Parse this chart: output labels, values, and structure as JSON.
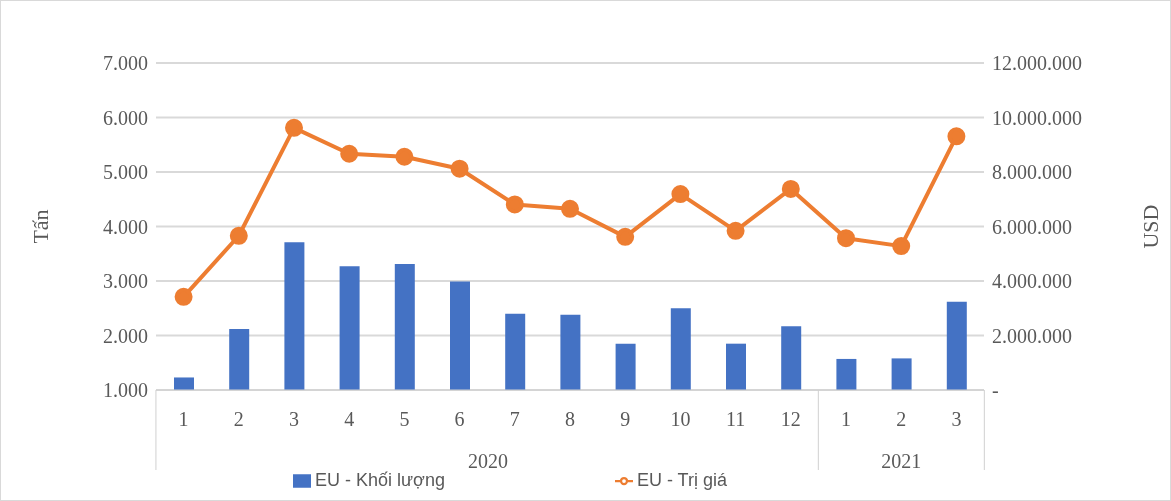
{
  "chart_data": {
    "type": "bar",
    "ylabel": "Tấn",
    "y2label": "USD",
    "categories": [
      "1",
      "2",
      "3",
      "4",
      "5",
      "6",
      "7",
      "8",
      "9",
      "10",
      "11",
      "12",
      "1",
      "2",
      "3"
    ],
    "annotations": [
      "2020",
      "2021"
    ],
    "series": [
      {
        "name": "EU - Khối lượng",
        "color": "#4472c4",
        "values": [
          1230,
          2120,
          3710,
          3270,
          3310,
          2990,
          2400,
          2380,
          1850,
          2500,
          1850,
          2170,
          1570,
          1580,
          2620
        ]
      },
      {
        "name": "EU - Trị giá",
        "type": "line",
        "axis": "y2",
        "color": "#ed7d31",
        "marker": "circle",
        "values": [
          3420000,
          5660000,
          9620000,
          8670000,
          8560000,
          8120000,
          6810000,
          6650000,
          5620000,
          7190000,
          5840000,
          7380000,
          5570000,
          5280000,
          9310000
        ]
      }
    ],
    "ylim": [
      1000,
      7000
    ],
    "yticks": [
      {
        "value": 1000,
        "label": "1.000"
      },
      {
        "value": 2000,
        "label": "2.000"
      },
      {
        "value": 3000,
        "label": "3.000"
      },
      {
        "value": 4000,
        "label": "4.000"
      },
      {
        "value": 5000,
        "label": "5.000"
      },
      {
        "value": 6000,
        "label": "6.000"
      },
      {
        "value": 7000,
        "label": "7.000"
      }
    ],
    "y2lim": [
      0,
      12000000
    ],
    "y2ticks": [
      {
        "value": 0,
        "label": "-"
      },
      {
        "value": 2000000,
        "label": "2.000.000"
      },
      {
        "value": 4000000,
        "label": "4.000.000"
      },
      {
        "value": 6000000,
        "label": "6.000.000"
      },
      {
        "value": 8000000,
        "label": "8.000.000"
      },
      {
        "value": 10000000,
        "label": "10.000.000"
      },
      {
        "value": 12000000,
        "label": "12.000.000"
      }
    ],
    "grid": "y",
    "legend": "bottom"
  }
}
